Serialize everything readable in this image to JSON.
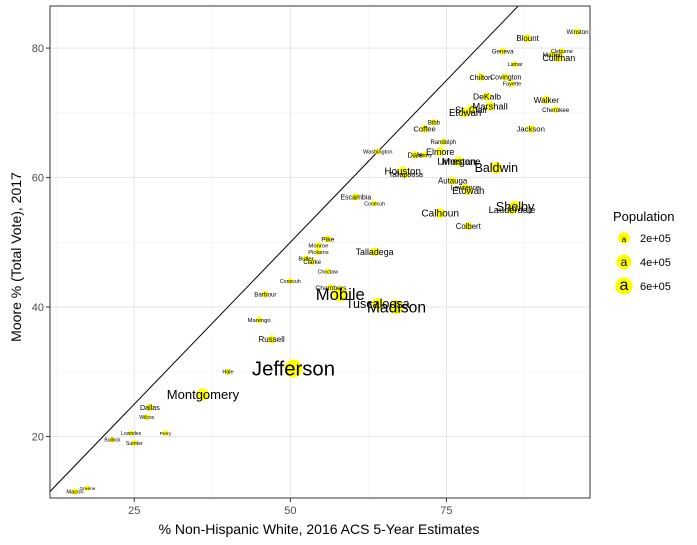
{
  "chart_data": {
    "type": "scatter",
    "xlabel": "% Non-Hispanic White, 2016 ACS 5-Year Estimates",
    "ylabel": "Moore % (Total Vote), 2017",
    "xlim": [
      11.5,
      98
    ],
    "ylim": [
      10.5,
      86.5
    ],
    "x_ticks": [
      25,
      50,
      75
    ],
    "y_ticks": [
      20,
      40,
      60,
      80
    ],
    "reference_line": {
      "description": "y = x"
    },
    "grid": true,
    "point_color": "#FFFF00",
    "legend": {
      "title": "Population",
      "entries": [
        {
          "label": "2e+05",
          "value": 200000
        },
        {
          "label": "4e+05",
          "value": 400000
        },
        {
          "label": "6e+05",
          "value": 600000
        }
      ]
    },
    "points": [
      {
        "county": "Winston",
        "x": 96,
        "y": 82.5,
        "pop": 24000
      },
      {
        "county": "Blount",
        "x": 88,
        "y": 81.5,
        "pop": 57000
      },
      {
        "county": "Geneva",
        "x": 84,
        "y": 79.5,
        "pop": 26000
      },
      {
        "county": "Cleburne",
        "x": 93.5,
        "y": 79.5,
        "pop": 15000
      },
      {
        "county": "Marion",
        "x": 92,
        "y": 79,
        "pop": 30000
      },
      {
        "county": "Cullman",
        "x": 93,
        "y": 78.5,
        "pop": 82000
      },
      {
        "county": "Lamar",
        "x": 86,
        "y": 77.5,
        "pop": 14000
      },
      {
        "county": "Chilton",
        "x": 80.5,
        "y": 75.5,
        "pop": 43000
      },
      {
        "county": "Covington",
        "x": 84.5,
        "y": 75.5,
        "pop": 37000
      },
      {
        "county": "Fayette",
        "x": 85.5,
        "y": 74.5,
        "pop": 17000
      },
      {
        "county": "DeKalb",
        "x": 81.5,
        "y": 72.5,
        "pop": 71000
      },
      {
        "county": "Walker",
        "x": 91,
        "y": 72,
        "pop": 65000
      },
      {
        "county": "Marshall",
        "x": 82,
        "y": 71,
        "pop": 94000
      },
      {
        "county": "Cherokee",
        "x": 92.5,
        "y": 70.5,
        "pop": 26000
      },
      {
        "county": "St. Clair",
        "x": 79,
        "y": 70.5,
        "pop": 87000
      },
      {
        "county": "Etowah",
        "x": 78,
        "y": 70,
        "pop": 103000
      },
      {
        "county": "Bibb",
        "x": 73,
        "y": 68.5,
        "pop": 22000
      },
      {
        "county": "Jackson",
        "x": 88.5,
        "y": 67.5,
        "pop": 53000
      },
      {
        "county": "Coffee",
        "x": 71.5,
        "y": 67.5,
        "pop": 51000
      },
      {
        "county": "Randolph",
        "x": 74.5,
        "y": 65.5,
        "pop": 22000
      },
      {
        "county": "Elmore",
        "x": 74,
        "y": 64,
        "pop": 81000
      },
      {
        "county": "Washington",
        "x": 64,
        "y": 64,
        "pop": 17000
      },
      {
        "county": "Dale",
        "x": 70,
        "y": 63.5,
        "pop": 50000
      },
      {
        "county": "Henry",
        "x": 71.5,
        "y": 63.5,
        "pop": 17000
      },
      {
        "county": "Morgan",
        "x": 77,
        "y": 62.5,
        "pop": 119000
      },
      {
        "county": "Limestone",
        "x": 77,
        "y": 62.5,
        "pop": 92000
      },
      {
        "county": "Baldwin",
        "x": 83,
        "y": 61.5,
        "pop": 200000
      },
      {
        "county": "Houston",
        "x": 68,
        "y": 61,
        "pop": 104000
      },
      {
        "county": "Tallapoosa",
        "x": 68.5,
        "y": 60.5,
        "pop": 41000
      },
      {
        "county": "Autauga",
        "x": 76,
        "y": 59.5,
        "pop": 55000
      },
      {
        "county": "Lawrence",
        "x": 78,
        "y": 58.5,
        "pop": 33000
      },
      {
        "county": "Etowah",
        "x": 78.5,
        "y": 58,
        "pop": 103000
      },
      {
        "county": "Escambia",
        "x": 60.5,
        "y": 57,
        "pop": 38000
      },
      {
        "county": "Conecuh",
        "x": 63.5,
        "y": 56,
        "pop": 12500
      },
      {
        "county": "Shelby",
        "x": 86,
        "y": 55.5,
        "pop": 208000
      },
      {
        "county": "Lauderdale",
        "x": 85.5,
        "y": 55,
        "pop": 92000
      },
      {
        "county": "Calhoun",
        "x": 74,
        "y": 54.5,
        "pop": 115000
      },
      {
        "county": "Colbert",
        "x": 78.5,
        "y": 52.5,
        "pop": 54000
      },
      {
        "county": "Pike",
        "x": 56,
        "y": 50.5,
        "pop": 33000
      },
      {
        "county": "Monroe",
        "x": 54.5,
        "y": 49.5,
        "pop": 21000
      },
      {
        "county": "Pickens",
        "x": 54.5,
        "y": 48.5,
        "pop": 20000
      },
      {
        "county": "Talladega",
        "x": 63.5,
        "y": 48.5,
        "pop": 80000
      },
      {
        "county": "Butler",
        "x": 52.5,
        "y": 47.5,
        "pop": 20000
      },
      {
        "county": "Clarke",
        "x": 53.5,
        "y": 47,
        "pop": 24000
      },
      {
        "county": "Choctaw",
        "x": 56,
        "y": 45.5,
        "pop": 13000
      },
      {
        "county": "Conecuh",
        "x": 50,
        "y": 44,
        "pop": 12500
      },
      {
        "county": "Chambers",
        "x": 56.5,
        "y": 43,
        "pop": 34000
      },
      {
        "county": "Barbour",
        "x": 46,
        "y": 42,
        "pop": 26000
      },
      {
        "county": "Mobile",
        "x": 58,
        "y": 42,
        "pop": 414000
      },
      {
        "county": "Tuscaloosa",
        "x": 64,
        "y": 40.5,
        "pop": 206000
      },
      {
        "county": "Madison",
        "x": 67,
        "y": 40,
        "pop": 357000
      },
      {
        "county": "Marengo",
        "x": 45,
        "y": 38,
        "pop": 20000
      },
      {
        "county": "Russell",
        "x": 47,
        "y": 35,
        "pop": 59000
      },
      {
        "county": "Jefferson",
        "x": 50.5,
        "y": 30.5,
        "pop": 659000
      },
      {
        "county": "Hale",
        "x": 40,
        "y": 30,
        "pop": 15000
      },
      {
        "county": "Montgomery",
        "x": 36,
        "y": 26.5,
        "pop": 226000
      },
      {
        "county": "Dallas",
        "x": 27.5,
        "y": 24.5,
        "pop": 41000
      },
      {
        "county": "Wilcox",
        "x": 27,
        "y": 23,
        "pop": 11000
      },
      {
        "county": "Lowndes",
        "x": 24.5,
        "y": 20.5,
        "pop": 10500
      },
      {
        "county": "Perry",
        "x": 30,
        "y": 20.5,
        "pop": 10000
      },
      {
        "county": "Bullock",
        "x": 21.5,
        "y": 19.5,
        "pop": 10500
      },
      {
        "county": "Sumter",
        "x": 25,
        "y": 19,
        "pop": 13000
      },
      {
        "county": "Greene",
        "x": 17.5,
        "y": 12,
        "pop": 8400
      },
      {
        "county": "Macon",
        "x": 15.5,
        "y": 11.5,
        "pop": 19000
      }
    ]
  }
}
